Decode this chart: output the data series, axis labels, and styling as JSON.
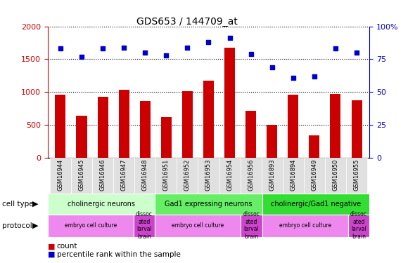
{
  "title": "GDS653 / 144709_at",
  "samples": [
    "GSM16944",
    "GSM16945",
    "GSM16946",
    "GSM16947",
    "GSM16948",
    "GSM16951",
    "GSM16952",
    "GSM16953",
    "GSM16954",
    "GSM16956",
    "GSM16893",
    "GSM16894",
    "GSM16949",
    "GSM16950",
    "GSM16955"
  ],
  "counts": [
    960,
    640,
    930,
    1040,
    860,
    620,
    1010,
    1170,
    1680,
    720,
    500,
    960,
    340,
    970,
    870
  ],
  "percentile_ranks": [
    83,
    77,
    83,
    84,
    80,
    78,
    84,
    88,
    91,
    79,
    69,
    61,
    62,
    83,
    80
  ],
  "bar_color": "#cc0000",
  "dot_color": "#0000cc",
  "ylim_left": [
    0,
    2000
  ],
  "ylim_right": [
    0,
    100
  ],
  "yticks_left": [
    0,
    500,
    1000,
    1500,
    2000
  ],
  "yticks_right": [
    0,
    25,
    50,
    75,
    100
  ],
  "cell_type_groups": [
    {
      "label": "cholinergic neurons",
      "start": 0,
      "end": 4,
      "color": "#ccffcc"
    },
    {
      "label": "Gad1 expressing neurons",
      "start": 5,
      "end": 9,
      "color": "#66ee66"
    },
    {
      "label": "cholinergic/Gad1 negative",
      "start": 10,
      "end": 14,
      "color": "#33dd33"
    }
  ],
  "protocol_groups": [
    {
      "label": "embryo cell culture",
      "start": 0,
      "end": 3,
      "color": "#ee88ee"
    },
    {
      "label": "dissoc\nated\nlarval\nbrain",
      "start": 4,
      "end": 4,
      "color": "#cc44cc"
    },
    {
      "label": "embryo cell culture",
      "start": 5,
      "end": 8,
      "color": "#ee88ee"
    },
    {
      "label": "dissoc\nated\nlarval\nbrain",
      "start": 9,
      "end": 9,
      "color": "#cc44cc"
    },
    {
      "label": "embryo cell culture",
      "start": 10,
      "end": 13,
      "color": "#ee88ee"
    },
    {
      "label": "dissoc\nated\nlarval\nbrain",
      "start": 14,
      "end": 14,
      "color": "#cc44cc"
    }
  ],
  "tick_color_left": "#cc0000",
  "tick_color_right": "#0000cc",
  "legend_count_label": "count",
  "legend_pct_label": "percentile rank within the sample"
}
